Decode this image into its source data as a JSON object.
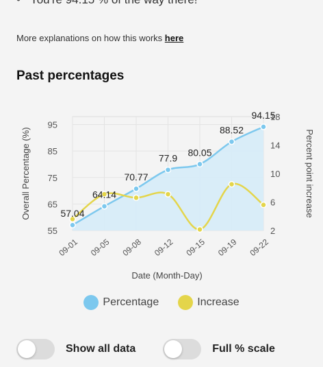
{
  "status": {
    "text": "You're 94.15 % of the way there!"
  },
  "explanation": {
    "text": "More explanations on how this works",
    "link_label": "here"
  },
  "section_title": "Past percentages",
  "legend": [
    {
      "label": "Percentage",
      "color": "#7cc8ee"
    },
    {
      "label": "Increase",
      "color": "#e4d54a"
    }
  ],
  "toggles": [
    {
      "label": "Show all data",
      "on": false
    },
    {
      "label": "Full % scale",
      "on": false
    }
  ],
  "chart_data": {
    "type": "line",
    "categories": [
      "09-01",
      "09-05",
      "09-08",
      "09-12",
      "09-15",
      "09-19",
      "09-22"
    ],
    "series": [
      {
        "name": "Percentage",
        "axis": "left",
        "values": [
          57.04,
          64.14,
          70.77,
          77.9,
          80.05,
          88.52,
          94.15
        ],
        "fill": true,
        "color": "#7cc8ee"
      },
      {
        "name": "Increase",
        "axis": "right",
        "values": [
          3.6,
          7.1,
          6.6,
          7.1,
          2.15,
          8.5,
          5.6
        ],
        "fill": false,
        "color": "#e4d54a"
      }
    ],
    "data_labels": [
      "57.04",
      "64.14",
      "70.77",
      "77.9",
      "80.05",
      "88.52",
      "94.15"
    ],
    "xlabel": "Date (Month-Day)",
    "ylabel": "Overall Percentage (%)",
    "y2label": "Percent point increase",
    "ylim": [
      55,
      98
    ],
    "y2lim": [
      2,
      18
    ],
    "yticks": [
      55,
      65,
      75,
      85,
      95
    ],
    "y2ticks": [
      2,
      6,
      10,
      14,
      18
    ],
    "grid": true
  }
}
